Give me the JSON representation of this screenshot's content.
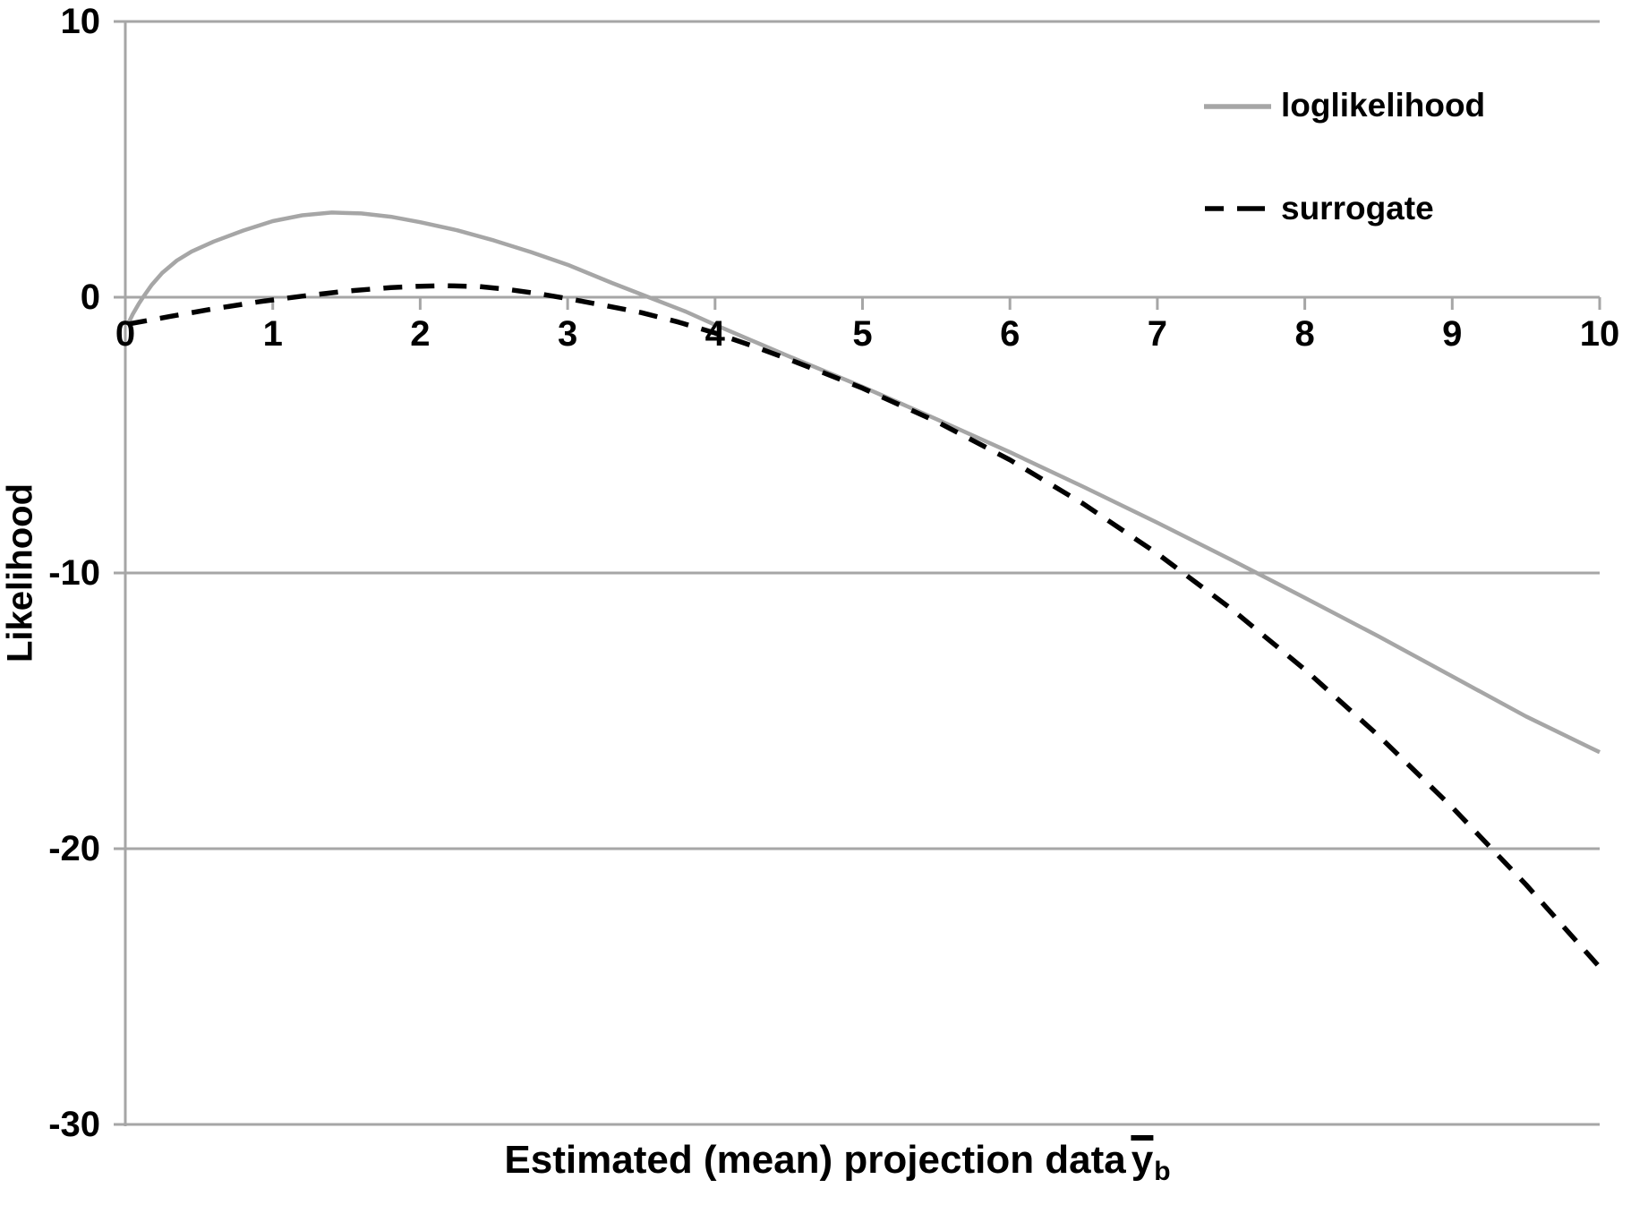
{
  "chart_data": {
    "type": "line",
    "title": "",
    "xlabel": "Estimated (mean) projection data y̅b",
    "xlabel_parts": {
      "main": "Estimated (mean) projection data",
      "symbol": "y",
      "symbol_overline": true,
      "subscript": "b"
    },
    "ylabel": "Likelihood",
    "xlim": [
      0,
      10
    ],
    "ylim": [
      -30,
      10
    ],
    "xticks": [
      0,
      1,
      2,
      3,
      4,
      5,
      6,
      7,
      8,
      9,
      10
    ],
    "yticks": [
      10,
      0,
      -10,
      -20,
      -30
    ],
    "grid": "horizontal",
    "legend_position": "upper-right",
    "axis_color": "#a6a6a6",
    "gridline_color": "#a6a6a6",
    "text_color": "#000000",
    "series": [
      {
        "name": "loglikelihood",
        "color": "#a6a6a6",
        "style": "solid",
        "points": [
          [
            0.02,
            -0.95
          ],
          [
            0.05,
            -0.62
          ],
          [
            0.09,
            -0.25
          ],
          [
            0.12,
            0
          ],
          [
            0.18,
            0.45
          ],
          [
            0.25,
            0.88
          ],
          [
            0.35,
            1.33
          ],
          [
            0.45,
            1.66
          ],
          [
            0.6,
            2.02
          ],
          [
            0.8,
            2.42
          ],
          [
            1,
            2.76
          ],
          [
            1.2,
            2.97
          ],
          [
            1.4,
            3.07
          ],
          [
            1.6,
            3.04
          ],
          [
            1.8,
            2.92
          ],
          [
            2,
            2.72
          ],
          [
            2.25,
            2.43
          ],
          [
            2.5,
            2.06
          ],
          [
            2.75,
            1.64
          ],
          [
            3,
            1.18
          ],
          [
            3.3,
            0.52
          ],
          [
            3.55,
            0
          ],
          [
            3.8,
            -0.52
          ],
          [
            4,
            -1.0
          ],
          [
            4.25,
            -1.57
          ],
          [
            4.5,
            -2.14
          ],
          [
            4.75,
            -2.69
          ],
          [
            5,
            -3.25
          ],
          [
            5.25,
            -3.83
          ],
          [
            5.5,
            -4.42
          ],
          [
            6,
            -5.62
          ],
          [
            6.5,
            -6.88
          ],
          [
            7,
            -8.18
          ],
          [
            7.5,
            -9.52
          ],
          [
            8,
            -10.9
          ],
          [
            8.5,
            -12.3
          ],
          [
            9,
            -13.75
          ],
          [
            9.5,
            -15.2
          ],
          [
            10,
            -16.5
          ]
        ]
      },
      {
        "name": "surrogate",
        "color": "#000000",
        "style": "dashed",
        "points": [
          [
            0.02,
            -0.97
          ],
          [
            0.3,
            -0.7
          ],
          [
            0.6,
            -0.42
          ],
          [
            0.9,
            -0.17
          ],
          [
            1.2,
            0.04
          ],
          [
            1.5,
            0.22
          ],
          [
            1.8,
            0.35
          ],
          [
            2,
            0.4
          ],
          [
            2.15,
            0.42
          ],
          [
            2.4,
            0.39
          ],
          [
            2.6,
            0.28
          ],
          [
            2.8,
            0.13
          ],
          [
            3,
            -0.05
          ],
          [
            3.25,
            -0.3
          ],
          [
            3.5,
            -0.56
          ],
          [
            3.75,
            -0.9
          ],
          [
            4,
            -1.3
          ],
          [
            4.25,
            -1.76
          ],
          [
            4.5,
            -2.25
          ],
          [
            4.75,
            -2.77
          ],
          [
            5,
            -3.3
          ],
          [
            5.5,
            -4.5
          ],
          [
            6,
            -5.9
          ],
          [
            6.5,
            -7.5
          ],
          [
            7,
            -9.3
          ],
          [
            7.5,
            -11.3
          ],
          [
            8,
            -13.5
          ],
          [
            8.5,
            -15.9
          ],
          [
            9,
            -18.5
          ],
          [
            9.5,
            -21.3
          ],
          [
            10,
            -24.3
          ]
        ]
      }
    ]
  }
}
